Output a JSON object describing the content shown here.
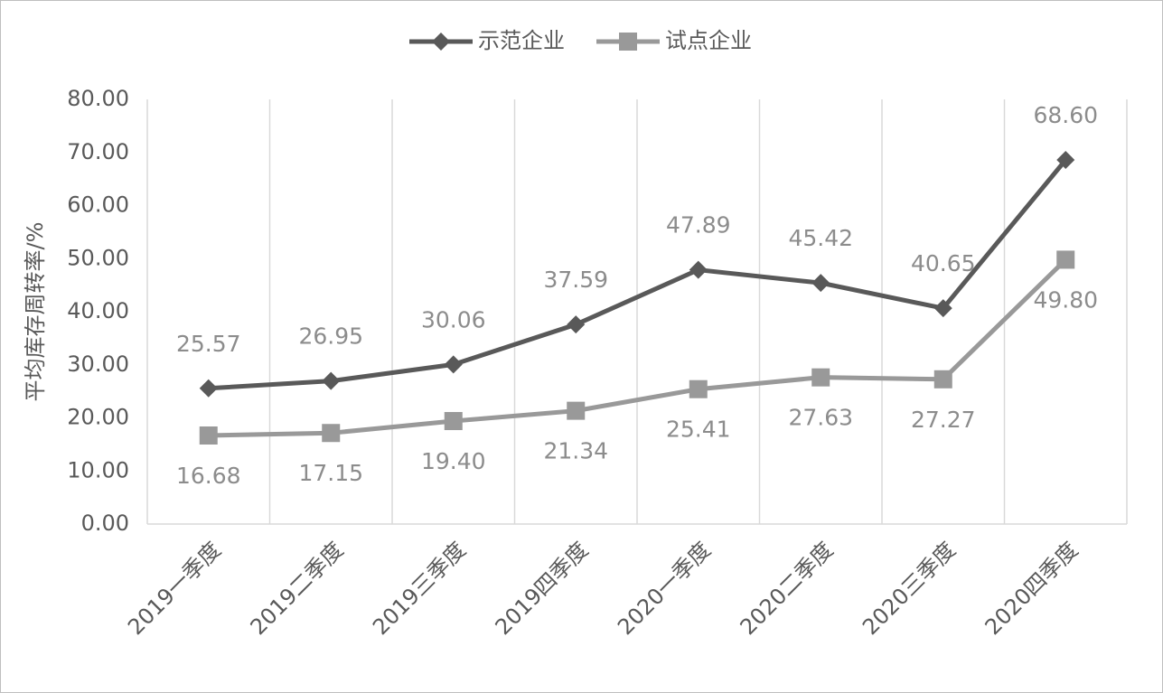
{
  "chart_data": {
    "type": "line",
    "y_label": "平均库存周转率/%",
    "categories": [
      "2019一季度",
      "2019二季度",
      "2019三季度",
      "2019四季度",
      "2020一季度",
      "2020二季度",
      "2020三季度",
      "2020四季度"
    ],
    "series": [
      {
        "name": "示范企业",
        "color": "#595959",
        "marker": "diamond",
        "values": [
          25.57,
          26.95,
          30.06,
          37.59,
          47.89,
          45.42,
          40.65,
          68.6
        ],
        "value_labels": [
          "25.57",
          "26.95",
          "30.06",
          "37.59",
          "47.89",
          "45.42",
          "40.65",
          "68.60"
        ]
      },
      {
        "name": "试点企业",
        "color": "#999999",
        "marker": "square",
        "values": [
          16.68,
          17.15,
          19.4,
          21.34,
          25.41,
          27.63,
          27.27,
          49.8
        ],
        "value_labels": [
          "16.68",
          "17.15",
          "19.40",
          "21.34",
          "25.41",
          "27.63",
          "27.27",
          "49.80"
        ]
      }
    ],
    "ylim": [
      0,
      80
    ],
    "yticks": [
      {
        "value": 0,
        "label": "0.00"
      },
      {
        "value": 10,
        "label": "10.00"
      },
      {
        "value": 20,
        "label": "20.00"
      },
      {
        "value": 30,
        "label": "30.00"
      },
      {
        "value": 40,
        "label": "40.00"
      },
      {
        "value": 50,
        "label": "50.00"
      },
      {
        "value": 60,
        "label": "60.00"
      },
      {
        "value": 70,
        "label": "70.00"
      },
      {
        "value": 80,
        "label": "80.00"
      }
    ],
    "legend": "top",
    "grid": "x"
  }
}
